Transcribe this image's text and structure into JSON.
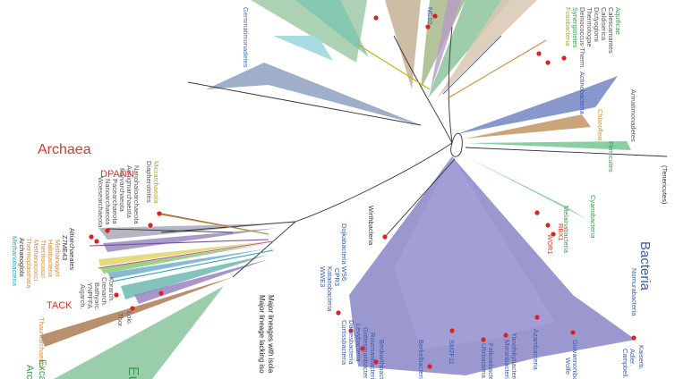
{
  "labels": {
    "archaea": "Archaea",
    "bacteria": "Bacteria",
    "eukaryota": "Euk",
    "dpann": "DPANN",
    "tack": "TACK",
    "micrarchaeota": "Micrarchaeota",
    "diapherotrites": "Diapherotrites",
    "nanohaloarchaeota": "Nanohaloarchaeota",
    "aenigmarchaeota": "Aenigmarchaeota",
    "parvarchaeota": "Parvarchaeota",
    "pacearchaeota": "Pacearchaeota",
    "nanoarchaeota": "Nanoarchaeota",
    "woesearchaeota": "Woesearchaeota",
    "altiarchaeales": "Altiarchaeales",
    "z7me43": "Z7ME43",
    "methanopyri": "Methanopyri",
    "halobacteria": "Halobacteria",
    "thermococci": "Thermococci",
    "methanococci": "Methanococci",
    "thermoplasmata": "Thermoplasmata",
    "archaeoglobi": "Archaeoglobi",
    "methanobacteria": "Methanobacteria",
    "korarch": "Korarch.",
    "crenarch": "Crenarch.",
    "bathyarch": "Bathyarc.",
    "yNPFFA": "YNPFFA",
    "aigarch": "Aigarch.",
    "thor": "Thor.",
    "loki": "Loki.",
    "thaumarchaeota": "Thaumarchaeota",
    "excavata": "Exca",
    "archaeplastida": "Arc",
    "aquificae": "Aquificae",
    "calescamantes": "Calescamantes",
    "caldiserica": "Caldiserica",
    "dictyoglomi": "Dictyoglomi",
    "thermotogae": "Thermotogae",
    "deinococcus_therm": "Deinococcus-Therm.",
    "synergistetes": "Synergistetes",
    "fusobacteria": "Fusobacteria",
    "actinobacteria": "Actinobacteria",
    "armatimonadetes": "Armatimonadetes",
    "chloroflexi": "Chloroflexi",
    "firmicutes": "Firmicutes",
    "tenericutes": "(Tenericutes)",
    "cyanobacteria": "Cyanobacteria",
    "melainabacteria": "Melainabacteria",
    "rbx1": "RBX1",
    "wor1": "WOR1",
    "wirthbacteria": "Wirthbacteria",
    "dojkabacteria": "Dojkabacteria WS6",
    "cpr3": "CPR3",
    "katanobacteria": "Katanobacteria",
    "we": "WWE3",
    "gottesmanbacteria": "Gottesmanbacteria",
    "levybacteria": "Levybacteria",
    "curtissbacteria": "Curtissbacteria",
    "daviesbacteria": "Daviesbacteria",
    "roizmanbacteria": "Roizmanbacteria",
    "beckwithbacteria": "Beckwithbacteria",
    "berkelbacteria": "Berkelbacteria",
    "sm2f11": "SM2F11",
    "kazan": "Kazan",
    "uhrbacteria": "Uhrbacteria",
    "falkowbacteria": "Falkowbacteria",
    "yanofskybacteria": "Yanofskybacteria",
    "moranbacteria": "Moranbacteria",
    "azambacteria": "Azambacteria",
    "nomurabacteria": "Nomurabacteria",
    "giovannonibacteria": "Giovannonibacteria",
    "wolfebacteria": "Wolfe",
    "kaiserbacteria": "Kaiserb.",
    "adlerbacteria": "Adler.",
    "campbellbacteria": "Campbell.",
    "gemmatimonadetes": "Gemmatimonadetes",
    "ncd": "NC10",
    "spirochaetes": "Spirochaetes",
    "thermodesulfo": "Thermodesulfo.",
    "acidobacteria": "Acidobacteria",
    "nitrospirae": "Nitrospirae",
    "proteobacteria": "Proteobacteria",
    "legend_line1": "Major lineages with isola",
    "legend_line2": "Major lineage lacking iso"
  }
}
